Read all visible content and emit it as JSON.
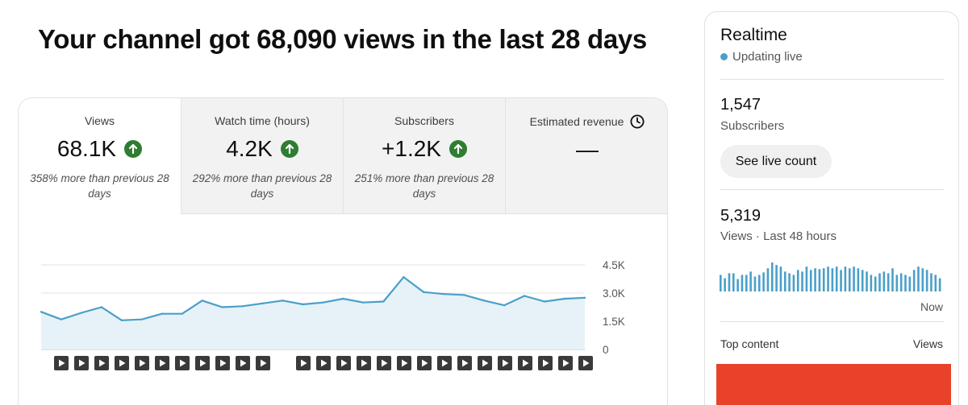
{
  "headline": "Your channel got 68,090 views in the last 28 days",
  "tabs": [
    {
      "label": "Views",
      "value": "68.1K",
      "compare": "358% more than previous 28 days",
      "trend": "up"
    },
    {
      "label": "Watch time (hours)",
      "value": "4.2K",
      "compare": "292% more than previous 28 days",
      "trend": "up"
    },
    {
      "label": "Subscribers",
      "value": "+1.2K",
      "compare": "251% more than previous 28 days",
      "trend": "up"
    },
    {
      "label": "Estimated revenue",
      "value": "—",
      "compare": "",
      "trend": "none",
      "icon": "clock-icon"
    }
  ],
  "chart_data": {
    "type": "area",
    "y_ticks": [
      "4.5K",
      "3.0K",
      "1.5K",
      "0"
    ],
    "ylim": [
      0,
      4500
    ],
    "values": [
      2000,
      1600,
      1950,
      2250,
      1550,
      1600,
      1900,
      1900,
      2600,
      2250,
      2300,
      2450,
      2600,
      2400,
      2500,
      2700,
      2500,
      2550,
      3850,
      3050,
      2950,
      2900,
      2600,
      2350,
      2850,
      2550,
      2700,
      2750
    ],
    "line_color": "#4a9fc9",
    "fill_color": "#e6f2f8",
    "grid": true,
    "video_markers": 22
  },
  "realtime": {
    "title": "Realtime",
    "status": "Updating live",
    "subscribers_count": "1,547",
    "subscribers_label": "Subscribers",
    "live_count_button": "See live count",
    "views_count": "5,319",
    "views_label": "Views · Last 48 hours",
    "now_label": "Now",
    "top_content_label": "Top content",
    "views_column_label": "Views",
    "bar_color": "#4a9fc9",
    "hourly_views": [
      20,
      16,
      22,
      22,
      15,
      20,
      20,
      24,
      18,
      20,
      23,
      28,
      35,
      32,
      30,
      24,
      22,
      20,
      26,
      24,
      30,
      26,
      28,
      27,
      28,
      30,
      28,
      30,
      26,
      30,
      28,
      30,
      28,
      26,
      24,
      20,
      18,
      22,
      24,
      22,
      28,
      20,
      22,
      20,
      18,
      26,
      30,
      28,
      26,
      22,
      20,
      16
    ]
  }
}
